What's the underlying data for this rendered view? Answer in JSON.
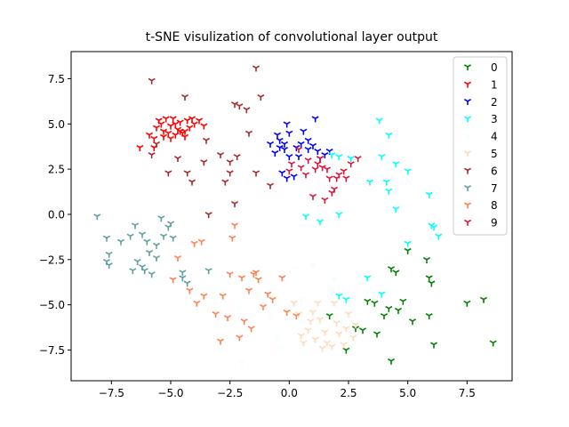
{
  "chart_data": {
    "type": "scatter",
    "title": "t-SNE visulization of convolutional layer output",
    "xlabel": "",
    "ylabel": "",
    "xlim": [
      -9.2,
      9.4
    ],
    "ylim": [
      -9.2,
      9.0
    ],
    "xticks": [
      -7.5,
      -5.0,
      -2.5,
      0.0,
      2.5,
      5.0,
      7.5
    ],
    "xtick_labels": [
      "−7.5",
      "−5.0",
      "−2.5",
      "0.0",
      "2.5",
      "5.0",
      "7.5"
    ],
    "yticks": [
      -7.5,
      -5.0,
      -2.5,
      0.0,
      2.5,
      5.0,
      7.5
    ],
    "ytick_labels": [
      "−7.5",
      "−5.0",
      "−2.5",
      "0.0",
      "2.5",
      "5.0",
      "7.5"
    ],
    "marker": "tri_down",
    "legend_position": "top-right",
    "series": [
      {
        "name": "0",
        "color": "#008000",
        "points": [
          [
            4.3,
            -3.0
          ],
          [
            4.5,
            -3.2
          ],
          [
            5.0,
            -2.0
          ],
          [
            5.8,
            -2.5
          ],
          [
            5.9,
            -3.5
          ],
          [
            6.0,
            -3.8
          ],
          [
            3.3,
            -4.8
          ],
          [
            3.6,
            -4.9
          ],
          [
            4.2,
            -5.2
          ],
          [
            4.0,
            -5.6
          ],
          [
            4.6,
            -5.3
          ],
          [
            4.8,
            -4.8
          ],
          [
            5.2,
            -5.9
          ],
          [
            6.1,
            -7.2
          ],
          [
            7.5,
            -4.9
          ],
          [
            8.2,
            -4.7
          ],
          [
            8.6,
            -7.1
          ],
          [
            4.3,
            -8.1
          ],
          [
            2.4,
            -7.5
          ],
          [
            3.1,
            -6.4
          ],
          [
            3.7,
            -6.6
          ],
          [
            1.7,
            -5.6
          ],
          [
            2.8,
            -6.3
          ],
          [
            5.9,
            -5.6
          ]
        ]
      },
      {
        "name": "1",
        "color": "#ff0000",
        "points": [
          [
            -6.3,
            3.7
          ],
          [
            -5.7,
            4.2
          ],
          [
            -5.6,
            4.8
          ],
          [
            -5.4,
            5.0
          ],
          [
            -5.3,
            4.6
          ],
          [
            -5.1,
            4.5
          ],
          [
            -5.0,
            4.9
          ],
          [
            -4.9,
            5.3
          ],
          [
            -4.8,
            4.4
          ],
          [
            -4.7,
            4.7
          ],
          [
            -4.6,
            5.1
          ],
          [
            -4.5,
            4.5
          ],
          [
            -4.4,
            4.3
          ],
          [
            -4.3,
            5.2
          ],
          [
            -4.2,
            4.8
          ],
          [
            -4.1,
            5.3
          ],
          [
            -4.0,
            5.0
          ],
          [
            -3.8,
            5.2
          ],
          [
            -3.6,
            4.9
          ],
          [
            -5.5,
            5.2
          ],
          [
            -5.2,
            5.3
          ],
          [
            -4.8,
            5.0
          ],
          [
            -4.6,
            4.6
          ],
          [
            -5.0,
            4.2
          ],
          [
            -5.7,
            3.7
          ],
          [
            -5.9,
            4.4
          ],
          [
            -4.4,
            4.6
          ],
          [
            -5.3,
            4.3
          ]
        ]
      },
      {
        "name": "2",
        "color": "#0000ff",
        "points": [
          [
            -0.1,
            5.0
          ],
          [
            -0.4,
            4.1
          ],
          [
            -0.2,
            3.9
          ],
          [
            -0.4,
            3.7
          ],
          [
            0.0,
            4.5
          ],
          [
            -0.8,
            3.9
          ],
          [
            -0.6,
            3.4
          ],
          [
            0.3,
            3.7
          ],
          [
            0.5,
            3.9
          ],
          [
            0.6,
            4.6
          ],
          [
            0.8,
            4.1
          ],
          [
            1.0,
            3.8
          ],
          [
            1.2,
            3.5
          ],
          [
            1.3,
            3.1
          ],
          [
            1.5,
            3.3
          ],
          [
            0.4,
            3.2
          ],
          [
            0.0,
            3.2
          ],
          [
            -0.3,
            2.3
          ],
          [
            -0.1,
            2.0
          ],
          [
            0.2,
            2.1
          ],
          [
            1.1,
            5.3
          ],
          [
            1.7,
            3.5
          ],
          [
            0.8,
            3.6
          ],
          [
            -0.2,
            3.6
          ],
          [
            -0.5,
            4.4
          ]
        ]
      },
      {
        "name": "3",
        "color": "#00ffff",
        "points": [
          [
            3.8,
            5.2
          ],
          [
            3.9,
            3.2
          ],
          [
            4.2,
            4.4
          ],
          [
            4.5,
            2.8
          ],
          [
            5.0,
            2.4
          ],
          [
            4.1,
            1.8
          ],
          [
            3.4,
            1.8
          ],
          [
            4.5,
            0.3
          ],
          [
            5.9,
            1.1
          ],
          [
            6.1,
            -0.7
          ],
          [
            6.3,
            -1.2
          ],
          [
            5.0,
            -1.6
          ],
          [
            3.3,
            -3.5
          ],
          [
            2.1,
            -4.5
          ],
          [
            2.4,
            -4.7
          ],
          [
            0.7,
            -0.1
          ],
          [
            1.3,
            -0.4
          ],
          [
            2.1,
            0.0
          ],
          [
            1.8,
            3.3
          ],
          [
            2.1,
            3.2
          ],
          [
            2.6,
            3.1
          ],
          [
            4.2,
            1.3
          ],
          [
            6.0,
            -0.6
          ],
          [
            3.9,
            -4.4
          ]
        ]
      },
      {
        "name": "4",
        "color": "#f0ffff",
        "points": [
          [
            -2.0,
            -8.2
          ],
          [
            -0.3,
            -7.4
          ],
          [
            0.1,
            -5.1
          ],
          [
            0.5,
            -4.7
          ],
          [
            0.6,
            -6.0
          ],
          [
            1.2,
            -6.1
          ],
          [
            1.5,
            -5.5
          ],
          [
            1.9,
            -3.6
          ],
          [
            -1.2,
            -3.5
          ],
          [
            -1.4,
            -4.3
          ],
          [
            -0.8,
            -5.6
          ],
          [
            2.6,
            -7.3
          ],
          [
            3.3,
            -4.3
          ],
          [
            -2.1,
            -5.2
          ],
          [
            0.3,
            -3.0
          ],
          [
            1.0,
            -2.8
          ],
          [
            -0.5,
            -6.8
          ],
          [
            2.2,
            -5.9
          ]
        ]
      },
      {
        "name": "5",
        "color": "#ffdab9",
        "points": [
          [
            0.6,
            -7.1
          ],
          [
            0.8,
            -6.4
          ],
          [
            1.0,
            -5.4
          ],
          [
            1.2,
            -4.9
          ],
          [
            1.3,
            -5.8
          ],
          [
            1.5,
            -6.5
          ],
          [
            1.6,
            -7.1
          ],
          [
            1.8,
            -7.3
          ],
          [
            2.0,
            -6.0
          ],
          [
            2.1,
            -6.6
          ],
          [
            2.3,
            -7.2
          ],
          [
            2.5,
            -5.5
          ],
          [
            2.7,
            -6.8
          ],
          [
            0.2,
            -4.9
          ],
          [
            0.4,
            -5.5
          ],
          [
            1.1,
            -6.9
          ],
          [
            1.9,
            -4.9
          ],
          [
            2.8,
            -6.1
          ],
          [
            0.9,
            -5.9
          ],
          [
            2.4,
            -6.3
          ],
          [
            0.5,
            -6.7
          ],
          [
            1.4,
            -7.4
          ]
        ]
      },
      {
        "name": "6",
        "color": "#a52a2a",
        "points": [
          [
            -5.8,
            7.4
          ],
          [
            -4.4,
            6.5
          ],
          [
            -1.4,
            8.1
          ],
          [
            -1.2,
            6.5
          ],
          [
            -2.1,
            6.0
          ],
          [
            -2.3,
            6.1
          ],
          [
            -1.8,
            5.8
          ],
          [
            -3.5,
            4.1
          ],
          [
            -1.7,
            4.5
          ],
          [
            -5.8,
            3.3
          ],
          [
            -5.6,
            3.9
          ],
          [
            -5.1,
            2.3
          ],
          [
            -4.7,
            3.1
          ],
          [
            -4.3,
            2.3
          ],
          [
            -4.1,
            1.8
          ],
          [
            -3.6,
            2.9
          ],
          [
            -2.9,
            3.3
          ],
          [
            -2.5,
            2.9
          ],
          [
            -2.2,
            3.2
          ],
          [
            -2.7,
            1.8
          ],
          [
            -2.5,
            2.3
          ],
          [
            -1.4,
            2.3
          ],
          [
            -0.8,
            1.6
          ],
          [
            -2.3,
            0.6
          ],
          [
            -3.4,
            0.0
          ]
        ]
      },
      {
        "name": "7",
        "color": "#5f9ea0",
        "points": [
          [
            -8.1,
            -0.1
          ],
          [
            -7.7,
            -1.3
          ],
          [
            -7.6,
            -2.2
          ],
          [
            -7.7,
            -2.6
          ],
          [
            -7.6,
            -2.8
          ],
          [
            -7.1,
            -1.5
          ],
          [
            -6.7,
            -1.2
          ],
          [
            -6.5,
            -0.6
          ],
          [
            -6.2,
            -1.1
          ],
          [
            -6.4,
            -2.6
          ],
          [
            -6.2,
            -2.9
          ],
          [
            -6.0,
            -1.5
          ],
          [
            -5.9,
            -2.1
          ],
          [
            -5.6,
            -1.7
          ],
          [
            -5.3,
            -1.2
          ],
          [
            -5.1,
            -0.7
          ],
          [
            -4.9,
            -1.3
          ],
          [
            -4.5,
            -3.2
          ],
          [
            -4.3,
            -3.8
          ],
          [
            -3.4,
            -3.1
          ],
          [
            -6.1,
            -3.1
          ],
          [
            -5.8,
            -3.3
          ],
          [
            -5.6,
            -2.4
          ],
          [
            -6.6,
            -3.1
          ],
          [
            -5.4,
            -0.2
          ],
          [
            -4.5,
            -3.5
          ],
          [
            -5.0,
            -0.5
          ]
        ]
      },
      {
        "name": "8",
        "color": "#ff7f50",
        "points": [
          [
            -4.9,
            -3.6
          ],
          [
            -4.7,
            -2.4
          ],
          [
            -4.0,
            -1.6
          ],
          [
            -3.7,
            -1.5
          ],
          [
            -4.2,
            -4.2
          ],
          [
            -3.9,
            -4.9
          ],
          [
            -3.6,
            -4.5
          ],
          [
            -3.1,
            -5.5
          ],
          [
            -2.8,
            -4.5
          ],
          [
            -2.5,
            -3.3
          ],
          [
            -2.3,
            -0.6
          ],
          [
            -2.4,
            -1.3
          ],
          [
            -2.0,
            -3.5
          ],
          [
            -1.7,
            -4.2
          ],
          [
            -1.5,
            -3.3
          ],
          [
            -1.3,
            -3.6
          ],
          [
            -1.1,
            -5.1
          ],
          [
            -0.9,
            -4.4
          ],
          [
            -0.3,
            -3.5
          ],
          [
            -0.1,
            -5.4
          ],
          [
            0.3,
            -5.6
          ],
          [
            -2.6,
            -5.7
          ],
          [
            -1.9,
            -5.9
          ],
          [
            -2.1,
            -6.8
          ],
          [
            -1.6,
            -6.3
          ],
          [
            -2.9,
            -7.0
          ],
          [
            -1.4,
            -3.2
          ],
          [
            -0.7,
            -4.7
          ]
        ]
      },
      {
        "name": "9",
        "color": "#dc143c",
        "points": [
          [
            0.8,
            3.0
          ],
          [
            1.2,
            2.8
          ],
          [
            1.4,
            2.6
          ],
          [
            1.6,
            2.5
          ],
          [
            1.7,
            2.0
          ],
          [
            1.9,
            1.4
          ],
          [
            2.1,
            2.2
          ],
          [
            2.3,
            2.4
          ],
          [
            2.6,
            2.8
          ],
          [
            2.9,
            3.1
          ],
          [
            1.0,
            1.0
          ],
          [
            1.5,
            0.8
          ],
          [
            1.8,
            1.2
          ],
          [
            0.4,
            3.6
          ],
          [
            0.1,
            2.8
          ],
          [
            0.0,
            2.4
          ],
          [
            0.5,
            2.6
          ],
          [
            2.0,
            2.0
          ],
          [
            1.1,
            2.5
          ],
          [
            0.7,
            2.2
          ],
          [
            1.3,
            3.1
          ],
          [
            2.4,
            2.0
          ]
        ]
      }
    ]
  }
}
